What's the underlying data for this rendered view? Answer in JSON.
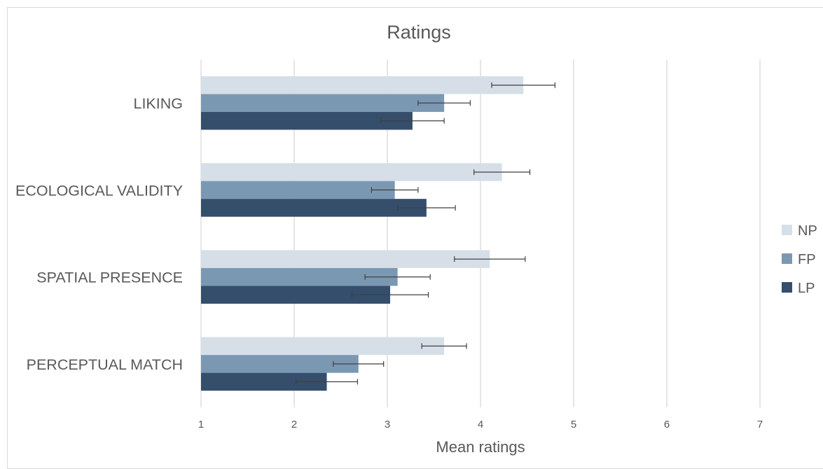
{
  "chart_data": {
    "type": "bar",
    "orientation": "horizontal",
    "title": "Ratings",
    "xlabel": "Mean ratings",
    "ylabel": "",
    "xlim": [
      1,
      7
    ],
    "x_ticks": [
      "1",
      "2",
      "3",
      "4",
      "5",
      "6",
      "7"
    ],
    "grid": "vertical",
    "legend_position": "right",
    "categories": [
      "LIKING",
      "ECOLOGICAL VALIDITY",
      "SPATIAL PRESENCE",
      "PERCEPTUAL MATCH"
    ],
    "series": [
      {
        "name": "NP",
        "color": "#d6dfe8",
        "values": [
          4.46,
          4.23,
          4.1,
          3.61
        ],
        "error": [
          0.34,
          0.3,
          0.38,
          0.24
        ]
      },
      {
        "name": "FP",
        "color": "#7b98b3",
        "values": [
          3.61,
          3.08,
          3.11,
          2.69
        ],
        "error": [
          0.28,
          0.25,
          0.35,
          0.27
        ]
      },
      {
        "name": "LP",
        "color": "#344e6c",
        "values": [
          3.27,
          3.42,
          3.03,
          2.35
        ],
        "error": [
          0.34,
          0.31,
          0.41,
          0.33
        ]
      }
    ]
  }
}
